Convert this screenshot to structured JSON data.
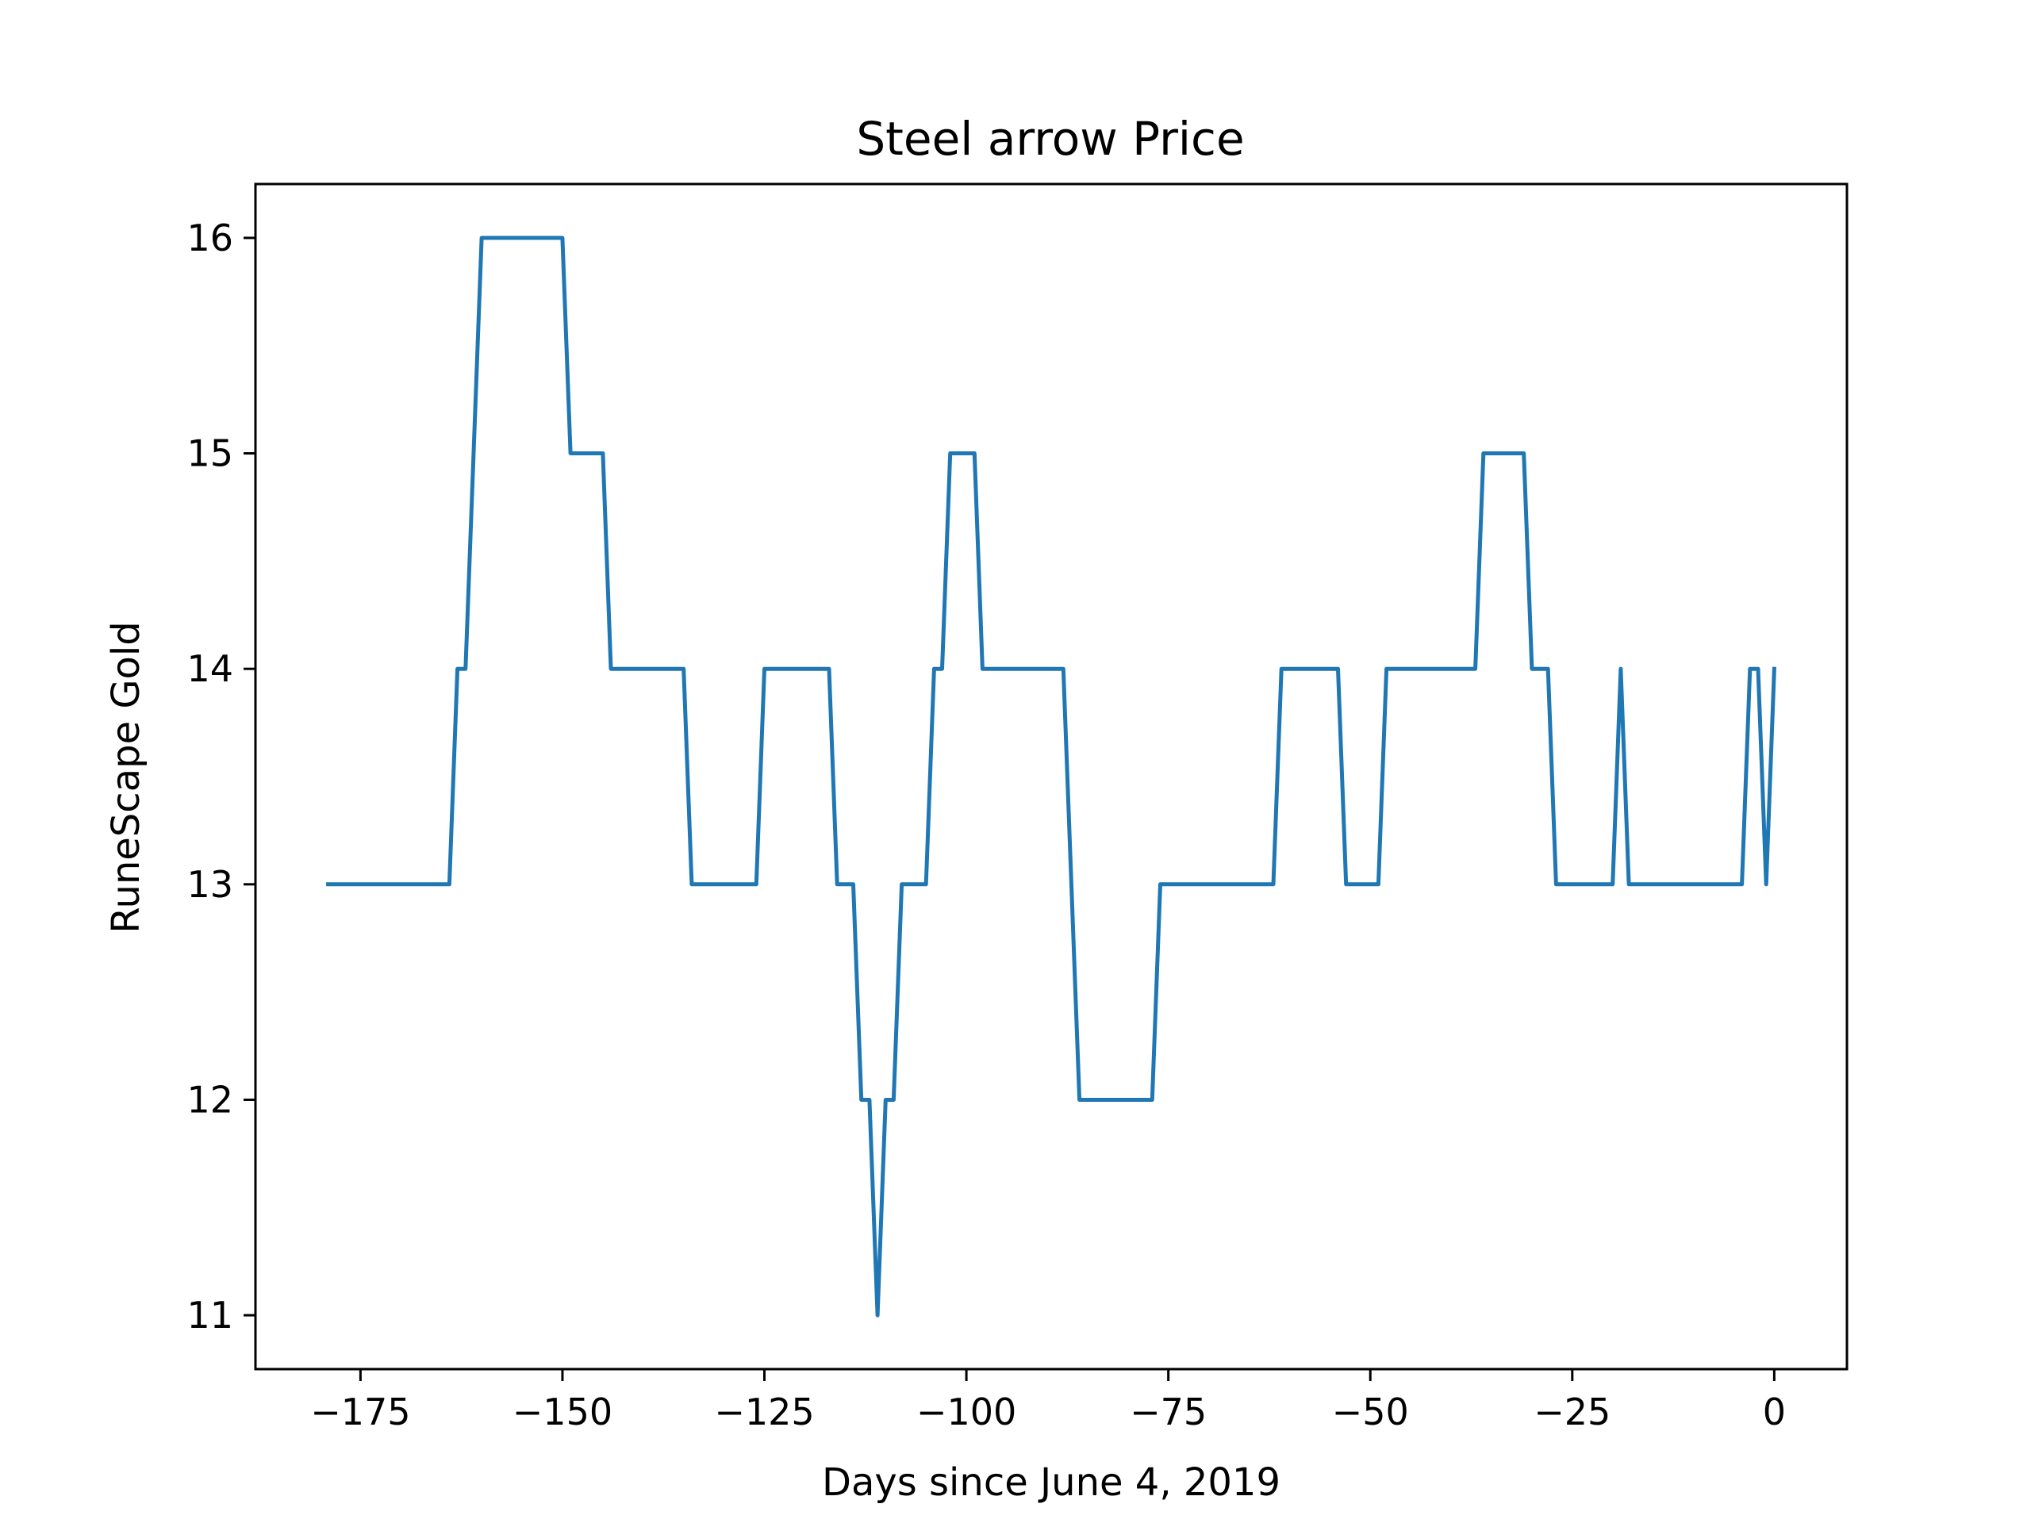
{
  "chart_data": {
    "type": "line",
    "title": "Steel arrow Price",
    "xlabel": "Days since June 4, 2019",
    "ylabel": "RuneScape Gold",
    "xlim": [
      -188,
      9
    ],
    "ylim": [
      10.75,
      16.25
    ],
    "xticks": [
      -175,
      -150,
      -125,
      -100,
      -75,
      -50,
      -25,
      0
    ],
    "xtick_labels": [
      "−175",
      "−150",
      "−125",
      "−100",
      "−75",
      "−50",
      "−25",
      "0"
    ],
    "yticks": [
      11,
      12,
      13,
      14,
      15,
      16
    ],
    "ytick_labels": [
      "11",
      "12",
      "13",
      "14",
      "15",
      "16"
    ],
    "grid": false,
    "color": "#1f77b4",
    "series": [
      {
        "name": "",
        "points": [
          [
            -179,
            13
          ],
          [
            -164,
            13
          ],
          [
            -163,
            14
          ],
          [
            -162,
            14
          ],
          [
            -160,
            16
          ],
          [
            -150,
            16
          ],
          [
            -149,
            15
          ],
          [
            -145,
            15
          ],
          [
            -144,
            14
          ],
          [
            -135,
            14
          ],
          [
            -134,
            13
          ],
          [
            -126,
            13
          ],
          [
            -125,
            14
          ],
          [
            -117,
            14
          ],
          [
            -116,
            13
          ],
          [
            -114,
            13
          ],
          [
            -113,
            12
          ],
          [
            -112,
            12
          ],
          [
            -111,
            11
          ],
          [
            -110,
            12
          ],
          [
            -109,
            12
          ],
          [
            -108,
            13
          ],
          [
            -105,
            13
          ],
          [
            -104,
            14
          ],
          [
            -103,
            14
          ],
          [
            -102,
            15
          ],
          [
            -99,
            15
          ],
          [
            -98,
            14
          ],
          [
            -88,
            14
          ],
          [
            -86,
            12
          ],
          [
            -77,
            12
          ],
          [
            -76,
            13
          ],
          [
            -62,
            13
          ],
          [
            -61,
            14
          ],
          [
            -54,
            14
          ],
          [
            -53,
            13
          ],
          [
            -49,
            13
          ],
          [
            -48,
            14
          ],
          [
            -37,
            14
          ],
          [
            -36,
            15
          ],
          [
            -31,
            15
          ],
          [
            -30,
            14
          ],
          [
            -28,
            14
          ],
          [
            -27,
            13
          ],
          [
            -20,
            13
          ],
          [
            -19,
            14
          ],
          [
            -18,
            13
          ],
          [
            -4,
            13
          ],
          [
            -3,
            14
          ],
          [
            -2,
            14
          ],
          [
            -1,
            13
          ],
          [
            0,
            14
          ]
        ]
      }
    ]
  }
}
